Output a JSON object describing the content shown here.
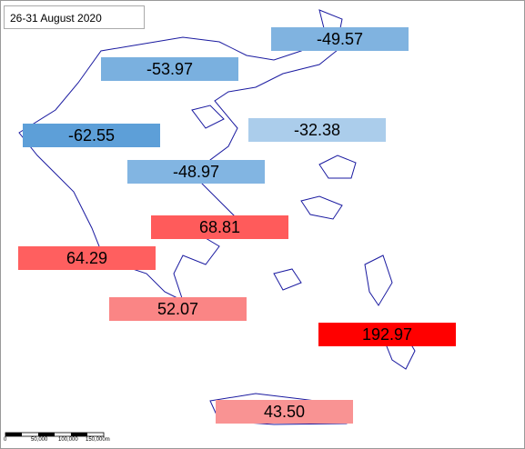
{
  "title": "26-31 August 2020",
  "regions": [
    {
      "label": "-49.57",
      "color": "#80b3e0"
    },
    {
      "label": "-53.97",
      "color": "#7ab0df"
    },
    {
      "label": "-62.55",
      "color": "#5d9fd8"
    },
    {
      "label": "-32.38",
      "color": "#abcdeb"
    },
    {
      "label": "-48.97",
      "color": "#82b5e2"
    },
    {
      "label": "68.81",
      "color": "#ff5b5b"
    },
    {
      "label": "64.29",
      "color": "#ff5f5f"
    },
    {
      "label": "52.07",
      "color": "#fa8585"
    },
    {
      "label": "192.97",
      "color": "#ff0000"
    },
    {
      "label": "43.50",
      "color": "#f99393"
    }
  ],
  "scale": [
    "0",
    "50,000",
    "100,000",
    "150,000m"
  ]
}
